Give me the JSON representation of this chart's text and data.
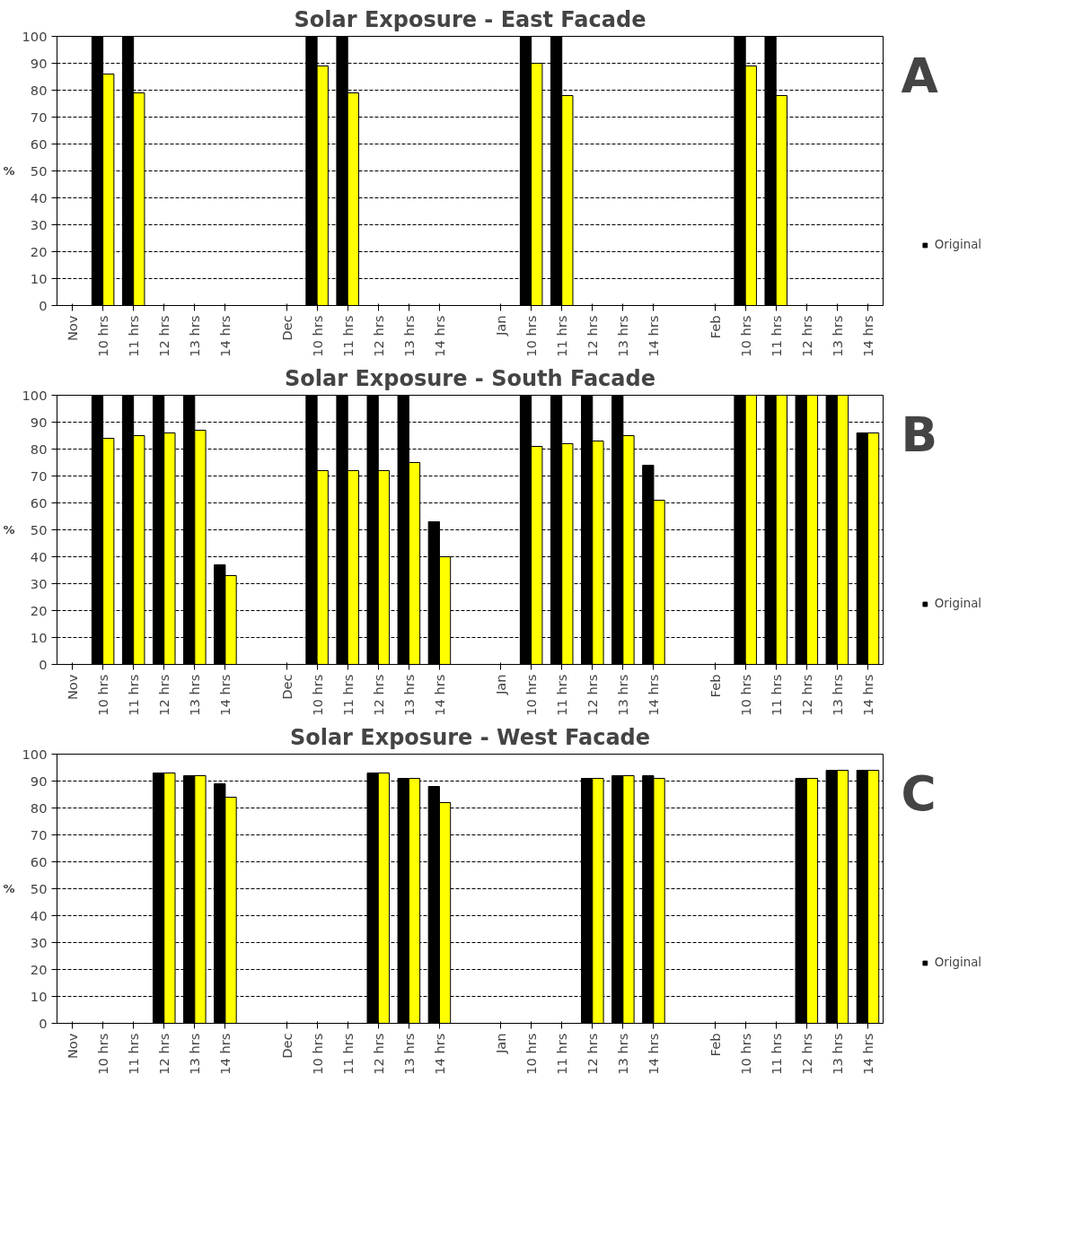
{
  "chart_data": [
    {
      "type": "bar",
      "title": "Solar Exposure - East Facade",
      "ylabel": "%",
      "annotations": [
        "A"
      ],
      "categories": [
        "Nov",
        "10 hrs",
        "11 hrs",
        "12 hrs",
        "13 hrs",
        "14 hrs",
        null,
        "Dec",
        "10 hrs",
        "11 hrs",
        "12 hrs",
        "13 hrs",
        "14 hrs",
        null,
        "Jan",
        "10 hrs",
        "11 hrs",
        "12 hrs",
        "13 hrs",
        "14 hrs",
        null,
        "Feb",
        "10 hrs",
        "11 hrs",
        "12 hrs",
        "13 hrs",
        "14 hrs"
      ],
      "series": [
        {
          "name": "Original",
          "color": "#000000",
          "values": [
            null,
            100,
            100,
            0,
            0,
            0,
            null,
            null,
            100,
            100,
            0,
            0,
            0,
            null,
            null,
            100,
            100,
            0,
            0,
            0,
            null,
            null,
            100,
            100,
            0,
            0,
            0
          ]
        },
        {
          "color": "#ffff00",
          "values": [
            null,
            86,
            79,
            0,
            0,
            0,
            null,
            null,
            89,
            79,
            0,
            0,
            0,
            null,
            null,
            90,
            78,
            0,
            0,
            0,
            null,
            null,
            89,
            78,
            0,
            0,
            0
          ]
        }
      ],
      "ylim": [
        0,
        100
      ],
      "yticks": [
        0,
        10,
        20,
        30,
        40,
        50,
        60,
        70,
        80,
        90,
        100
      ],
      "grid": "y",
      "legend": "bottom right"
    },
    {
      "type": "bar",
      "title": "Solar Exposure - South Facade",
      "ylabel": "%",
      "annotations": [
        "B"
      ],
      "categories": [
        "Nov",
        "10 hrs",
        "11 hrs",
        "12 hrs",
        "13 hrs",
        "14 hrs",
        null,
        "Dec",
        "10 hrs",
        "11 hrs",
        "12 hrs",
        "13 hrs",
        "14 hrs",
        null,
        "Jan",
        "10 hrs",
        "11 hrs",
        "12 hrs",
        "13 hrs",
        "14 hrs",
        null,
        "Feb",
        "10 hrs",
        "11 hrs",
        "12 hrs",
        "13 hrs",
        "14 hrs"
      ],
      "series": [
        {
          "name": "Original",
          "color": "#000000",
          "values": [
            null,
            100,
            100,
            100,
            100,
            37,
            null,
            null,
            100,
            100,
            100,
            100,
            53,
            null,
            null,
            100,
            100,
            100,
            100,
            74,
            null,
            null,
            100,
            100,
            100,
            100,
            86
          ]
        },
        {
          "color": "#ffff00",
          "values": [
            null,
            84,
            85,
            86,
            87,
            33,
            null,
            null,
            72,
            72,
            72,
            75,
            40,
            null,
            null,
            81,
            82,
            83,
            85,
            61,
            null,
            null,
            100,
            100,
            100,
            100,
            86
          ]
        }
      ],
      "ylim": [
        0,
        100
      ],
      "yticks": [
        0,
        10,
        20,
        30,
        40,
        50,
        60,
        70,
        80,
        90,
        100
      ],
      "grid": "y",
      "legend": "bottom right"
    },
    {
      "type": "bar",
      "title": "Solar Exposure - West Facade",
      "ylabel": "%",
      "annotations": [
        "C"
      ],
      "categories": [
        "Nov",
        "10 hrs",
        "11 hrs",
        "12 hrs",
        "13 hrs",
        "14 hrs",
        null,
        "Dec",
        "10 hrs",
        "11 hrs",
        "12 hrs",
        "13 hrs",
        "14 hrs",
        null,
        "Jan",
        "10 hrs",
        "11 hrs",
        "12 hrs",
        "13 hrs",
        "14 hrs",
        null,
        "Feb",
        "10 hrs",
        "11 hrs",
        "12 hrs",
        "13 hrs",
        "14 hrs"
      ],
      "series": [
        {
          "name": "Original",
          "color": "#000000",
          "values": [
            null,
            0,
            0,
            93,
            92,
            89,
            null,
            null,
            0,
            0,
            93,
            91,
            88,
            null,
            null,
            0,
            0,
            91,
            92,
            92,
            null,
            null,
            0,
            0,
            91,
            94,
            94
          ]
        },
        {
          "color": "#ffff00",
          "values": [
            null,
            0,
            0,
            93,
            92,
            84,
            null,
            null,
            0,
            0,
            93,
            91,
            82,
            null,
            null,
            0,
            0,
            91,
            92,
            91,
            null,
            null,
            0,
            0,
            91,
            94,
            94
          ]
        }
      ],
      "ylim": [
        0,
        100
      ],
      "yticks": [
        0,
        10,
        20,
        30,
        40,
        50,
        60,
        70,
        80,
        90,
        100
      ],
      "grid": "y",
      "legend": "bottom right"
    }
  ]
}
